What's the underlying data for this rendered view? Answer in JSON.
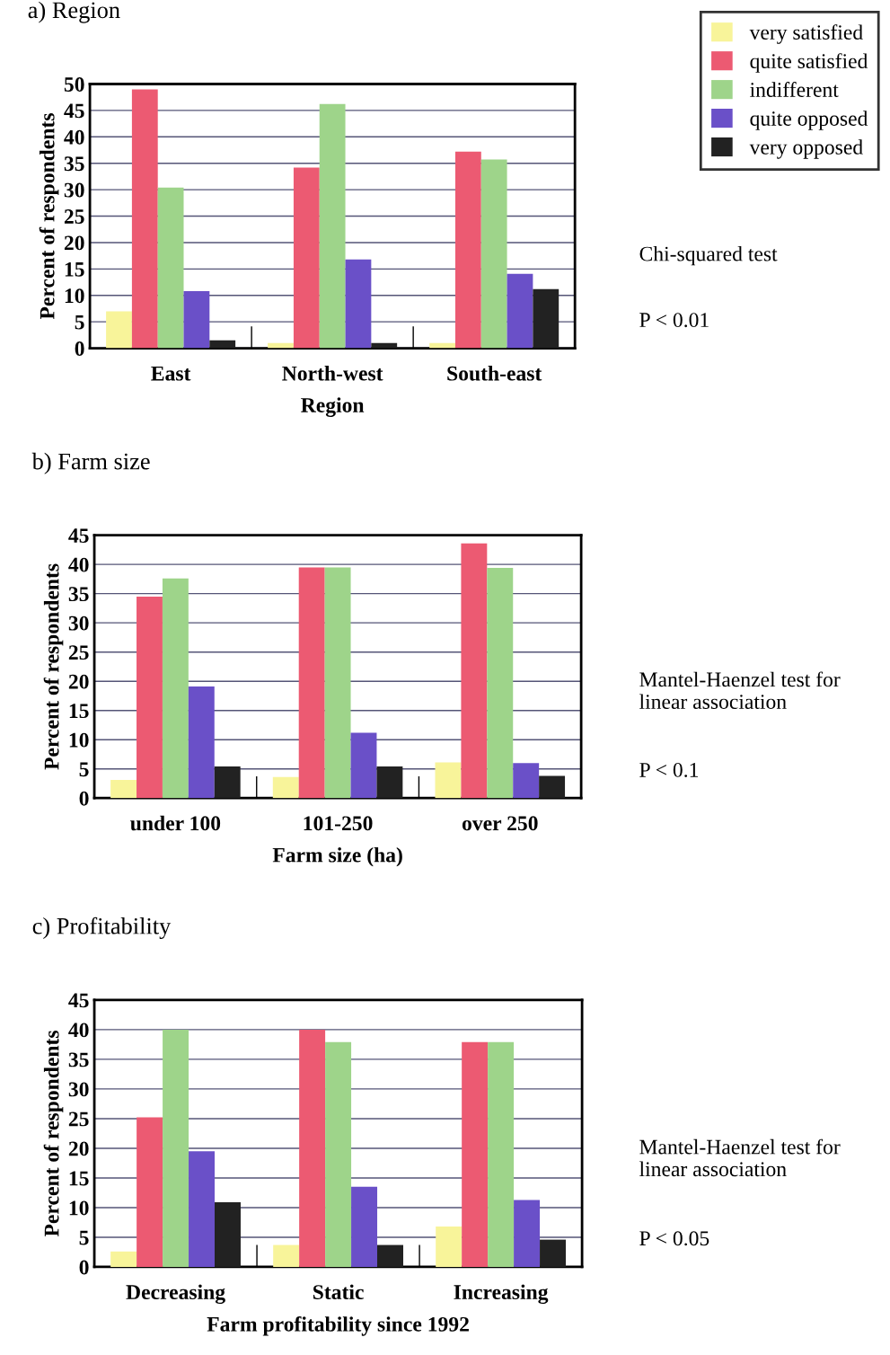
{
  "chart_data": [
    {
      "type": "bar",
      "title": "a) Region",
      "xlabel": "Region",
      "ylabel": "Percent of respondents",
      "categories": [
        "East",
        "North-west",
        "South-east"
      ],
      "series": [
        {
          "name": "very satisfied",
          "color": "#f8f49a",
          "values": [
            7.0,
            1.0,
            1.0
          ]
        },
        {
          "name": "quite satisfied",
          "color": "#ec5a72",
          "values": [
            49,
            34.2,
            37.2
          ]
        },
        {
          "name": "indifferent",
          "color": "#9ed48a",
          "values": [
            30.4,
            46.2,
            35.7
          ]
        },
        {
          "name": "quite opposed",
          "color": "#6a50c8",
          "values": [
            10.8,
            16.8,
            14.1
          ]
        },
        {
          "name": "very opposed",
          "color": "#222222",
          "values": [
            1.5,
            1.0,
            11.2
          ]
        }
      ],
      "ylim": [
        0,
        50
      ],
      "yticks": [
        0,
        5,
        10,
        15,
        20,
        25,
        30,
        35,
        40,
        45,
        50
      ],
      "grid": "y",
      "legend": "top right",
      "annotations": [
        "Chi-squared test",
        "P < 0.01"
      ]
    },
    {
      "type": "bar",
      "title": "b) Farm size",
      "xlabel": "Farm size (ha)",
      "ylabel": "Percent of respondents",
      "categories": [
        "under 100",
        "101-250",
        "over 250"
      ],
      "series": [
        {
          "color": "#f8f49a",
          "values": [
            3.1,
            3.6,
            6.1
          ]
        },
        {
          "color": "#ec5a72",
          "values": [
            34.5,
            39.5,
            43.6
          ]
        },
        {
          "color": "#9ed48a",
          "values": [
            37.6,
            39.5,
            39.4
          ]
        },
        {
          "color": "#6a50c8",
          "values": [
            19.1,
            11.2,
            6.0
          ]
        },
        {
          "color": "#222222",
          "values": [
            5.4,
            5.4,
            3.8
          ]
        }
      ],
      "ylim": [
        0,
        45
      ],
      "yticks": [
        0,
        5,
        10,
        15,
        20,
        25,
        30,
        35,
        40,
        45
      ],
      "grid": "y",
      "annotations": [
        "Mantel-Haenzel test for\nlinear association",
        "P < 0.1"
      ]
    },
    {
      "type": "bar",
      "title": "c) Profitability",
      "xlabel": "Farm profitability since 1992",
      "ylabel": "Percent of respondents",
      "categories": [
        "Decreasing",
        "Static",
        "Increasing"
      ],
      "series": [
        {
          "color": "#f8f49a",
          "values": [
            2.6,
            3.7,
            6.8
          ]
        },
        {
          "color": "#ec5a72",
          "values": [
            25.2,
            40,
            37.9
          ]
        },
        {
          "color": "#9ed48a",
          "values": [
            40,
            37.9,
            37.9
          ]
        },
        {
          "color": "#6a50c8",
          "values": [
            19.5,
            13.5,
            11.3
          ]
        },
        {
          "color": "#222222",
          "values": [
            10.9,
            3.7,
            4.6
          ]
        }
      ],
      "ylim": [
        0,
        45
      ],
      "yticks": [
        0,
        5,
        10,
        15,
        20,
        25,
        30,
        35,
        40,
        45
      ],
      "grid": "y",
      "annotations": [
        "Mantel-Haenzel test for\nlinear association",
        "P < 0.05"
      ]
    }
  ]
}
